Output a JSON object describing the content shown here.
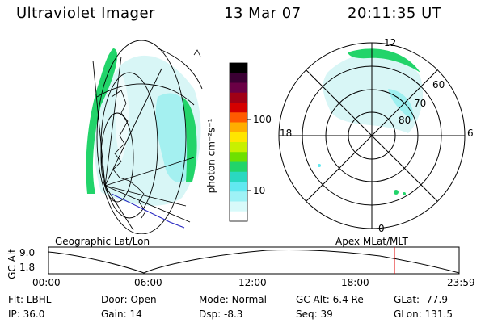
{
  "header": {
    "instrument": "Ultraviolet Imager",
    "date": "13 Mar 07",
    "time": "20:11:35 UT"
  },
  "colorbar": {
    "unit_label": "photon cm⁻²s⁻¹",
    "ticks": [
      "100",
      "10"
    ],
    "colors": [
      "#000000",
      "#3a0033",
      "#6a0045",
      "#a00016",
      "#d40000",
      "#ff5a00",
      "#ffae00",
      "#ffe600",
      "#c8f000",
      "#6ee000",
      "#22d46a",
      "#2ad8c0",
      "#62e8f0",
      "#9ef2f6",
      "#d8fafa",
      "#ffffff"
    ]
  },
  "geo_panel": {
    "label": "Geographic Lat/Lon"
  },
  "polar_panel": {
    "label": "Apex MLat/MLT",
    "mlt_labels": {
      "top": "12",
      "left": "18",
      "right": "6",
      "bottom": "0"
    },
    "lat_labels": [
      "60",
      "70",
      "80"
    ]
  },
  "timeline": {
    "ylabel": "GC Alt",
    "y_ticks": [
      "9.0",
      "1.8"
    ],
    "x_ticks": [
      "00:00",
      "06:00",
      "12:00",
      "18:00",
      "23:59"
    ],
    "marker_color": "#e00000"
  },
  "info": {
    "row1": [
      {
        "key": "Flt:",
        "val": "LBHL"
      },
      {
        "key": "Door:",
        "val": "Open"
      },
      {
        "key": "Mode:",
        "val": "Normal"
      },
      {
        "key": "GC Alt:",
        "val": "6.4 Re"
      },
      {
        "key": "GLat:",
        "val": "-77.9"
      }
    ],
    "row2": [
      {
        "key": "IP:",
        "val": "36.0"
      },
      {
        "key": "Gain:",
        "val": "14"
      },
      {
        "key": "Dsp:",
        "val": "-8.3"
      },
      {
        "key": "Seq:",
        "val": "39"
      },
      {
        "key": "GLon:",
        "val": "131.5"
      }
    ]
  }
}
